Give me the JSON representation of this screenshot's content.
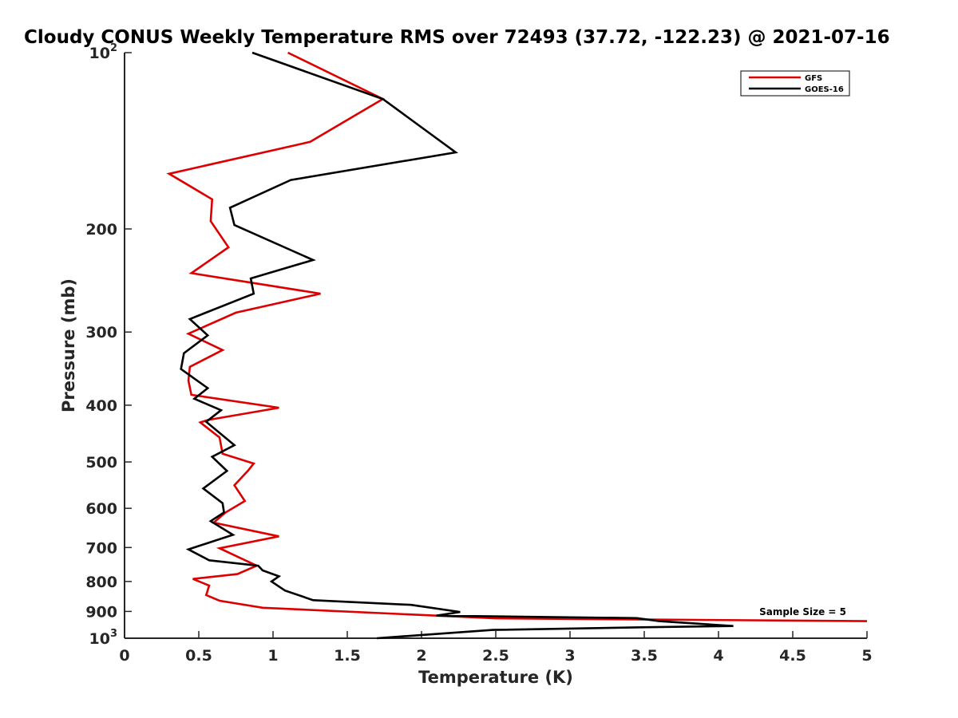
{
  "chart_data": {
    "type": "line",
    "title": "Cloudy CONUS Weekly Temperature RMS over 72493 (37.72, -122.23) @ 2021-07-16",
    "xlabel": "Temperature (K)",
    "ylabel": "Pressure (mb)",
    "xlim": [
      0,
      5
    ],
    "ylim": [
      100,
      1000
    ],
    "y_scale": "log",
    "y_reversed": true,
    "grid": false,
    "legend_position": "top-right",
    "x_ticks": [
      0,
      0.5,
      1,
      1.5,
      2,
      2.5,
      3,
      3.5,
      4,
      4.5,
      5
    ],
    "x_tick_labels": [
      "0",
      "0.5",
      "1",
      "1.5",
      "2",
      "2.5",
      "3",
      "3.5",
      "4",
      "4.5",
      "5"
    ],
    "y_ticks": [
      100,
      200,
      300,
      400,
      500,
      600,
      700,
      800,
      900,
      1000
    ],
    "y_tick_labels": [
      {
        "base": "10",
        "sup": "2"
      },
      {
        "base": "200",
        "sup": ""
      },
      {
        "base": "300",
        "sup": ""
      },
      {
        "base": "400",
        "sup": ""
      },
      {
        "base": "500",
        "sup": ""
      },
      {
        "base": "600",
        "sup": ""
      },
      {
        "base": "700",
        "sup": ""
      },
      {
        "base": "800",
        "sup": ""
      },
      {
        "base": "900",
        "sup": ""
      },
      {
        "base": "10",
        "sup": "3"
      }
    ],
    "annotation": "Sample Size = 5",
    "series": [
      {
        "name": "GFS",
        "color": "#dd0000",
        "points": [
          [
            1.1,
            100
          ],
          [
            1.74,
            120
          ],
          [
            1.25,
            142
          ],
          [
            0.3,
            161
          ],
          [
            0.59,
            178
          ],
          [
            0.58,
            194
          ],
          [
            0.7,
            215
          ],
          [
            0.45,
            238
          ],
          [
            1.32,
            258
          ],
          [
            0.75,
            278
          ],
          [
            0.43,
            302
          ],
          [
            0.66,
            322
          ],
          [
            0.44,
            344
          ],
          [
            0.43,
            363
          ],
          [
            0.45,
            384
          ],
          [
            1.04,
            404
          ],
          [
            0.56,
            424
          ],
          [
            0.51,
            428
          ],
          [
            0.64,
            454
          ],
          [
            0.66,
            484
          ],
          [
            0.87,
            503
          ],
          [
            0.83,
            518
          ],
          [
            0.74,
            548
          ],
          [
            0.81,
            583
          ],
          [
            0.68,
            610
          ],
          [
            0.6,
            635
          ],
          [
            1.04,
            670
          ],
          [
            0.64,
            702
          ],
          [
            0.89,
            752
          ],
          [
            0.76,
            777
          ],
          [
            0.46,
            792
          ],
          [
            0.57,
            813
          ],
          [
            0.55,
            844
          ],
          [
            0.64,
            863
          ],
          [
            0.93,
            887
          ],
          [
            2.5,
            925
          ],
          [
            5.0,
            935
          ]
        ]
      },
      {
        "name": "GOES-16",
        "color": "#000000",
        "points": [
          [
            0.86,
            100
          ],
          [
            1.74,
            120
          ],
          [
            2.23,
            148
          ],
          [
            1.12,
            165
          ],
          [
            0.71,
            184
          ],
          [
            0.74,
            197
          ],
          [
            1.27,
            226
          ],
          [
            0.85,
            243
          ],
          [
            0.87,
            258
          ],
          [
            0.44,
            285
          ],
          [
            0.56,
            304
          ],
          [
            0.4,
            326
          ],
          [
            0.38,
            347
          ],
          [
            0.56,
            374
          ],
          [
            0.47,
            390
          ],
          [
            0.65,
            408
          ],
          [
            0.55,
            427
          ],
          [
            0.74,
            468
          ],
          [
            0.59,
            490
          ],
          [
            0.69,
            518
          ],
          [
            0.53,
            555
          ],
          [
            0.66,
            588
          ],
          [
            0.67,
            610
          ],
          [
            0.58,
            631
          ],
          [
            0.73,
            666
          ],
          [
            0.43,
            705
          ],
          [
            0.57,
            736
          ],
          [
            0.9,
            752
          ],
          [
            0.93,
            766
          ],
          [
            1.04,
            784
          ],
          [
            0.99,
            800
          ],
          [
            1.08,
            829
          ],
          [
            1.27,
            861
          ],
          [
            1.93,
            877
          ],
          [
            2.26,
            902
          ],
          [
            2.1,
            915
          ],
          [
            3.45,
            924
          ],
          [
            3.6,
            935
          ],
          [
            4.1,
            953
          ],
          [
            3.48,
            958
          ],
          [
            2.48,
            968
          ],
          [
            1.7,
            1000
          ]
        ]
      }
    ]
  }
}
